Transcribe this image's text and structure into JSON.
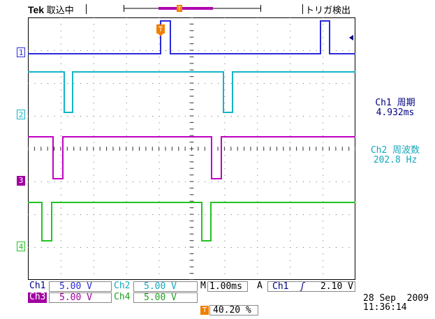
{
  "header": {
    "brand": "Tek",
    "acq_state": "取込中",
    "trigger_status": "トリガ検出"
  },
  "channels": [
    {
      "id": "1",
      "color": "#2a2ad8",
      "marker_style": "outline"
    },
    {
      "id": "2",
      "color": "#14b4c8",
      "marker_style": "outline"
    },
    {
      "id": "3",
      "color": "#a000a0",
      "marker_style": "filled"
    },
    {
      "id": "4",
      "color": "#22c322",
      "marker_style": "outline"
    }
  ],
  "measurements": [
    {
      "label": "Ch1 周期",
      "value": "4.932ms",
      "color": "#000080"
    },
    {
      "label": "Ch2 周波数",
      "value": "202.8 Hz",
      "color": "#14a8bc"
    }
  ],
  "readouts": {
    "ch1": {
      "label": "Ch1",
      "value": "5.00 V"
    },
    "ch2": {
      "label": "Ch2",
      "value": "5.00 V"
    },
    "ch3": {
      "label": "Ch3",
      "value": "5.00 V"
    },
    "ch4": {
      "label": "Ch4",
      "value": "5.00 V"
    },
    "timebase": {
      "label": "M",
      "value": "1.00ms"
    },
    "trigger": {
      "mode": "A",
      "source": "Ch1",
      "slope": "ʃ",
      "level": "2.10 V"
    },
    "trigger_position": {
      "icon": "T",
      "value": "40.20 %"
    }
  },
  "datetime": {
    "date": "28 Sep  2009",
    "time": "11:36:14"
  },
  "icon_colors": {
    "trigger_marker": "#f08000",
    "arrow": "#000080"
  }
}
